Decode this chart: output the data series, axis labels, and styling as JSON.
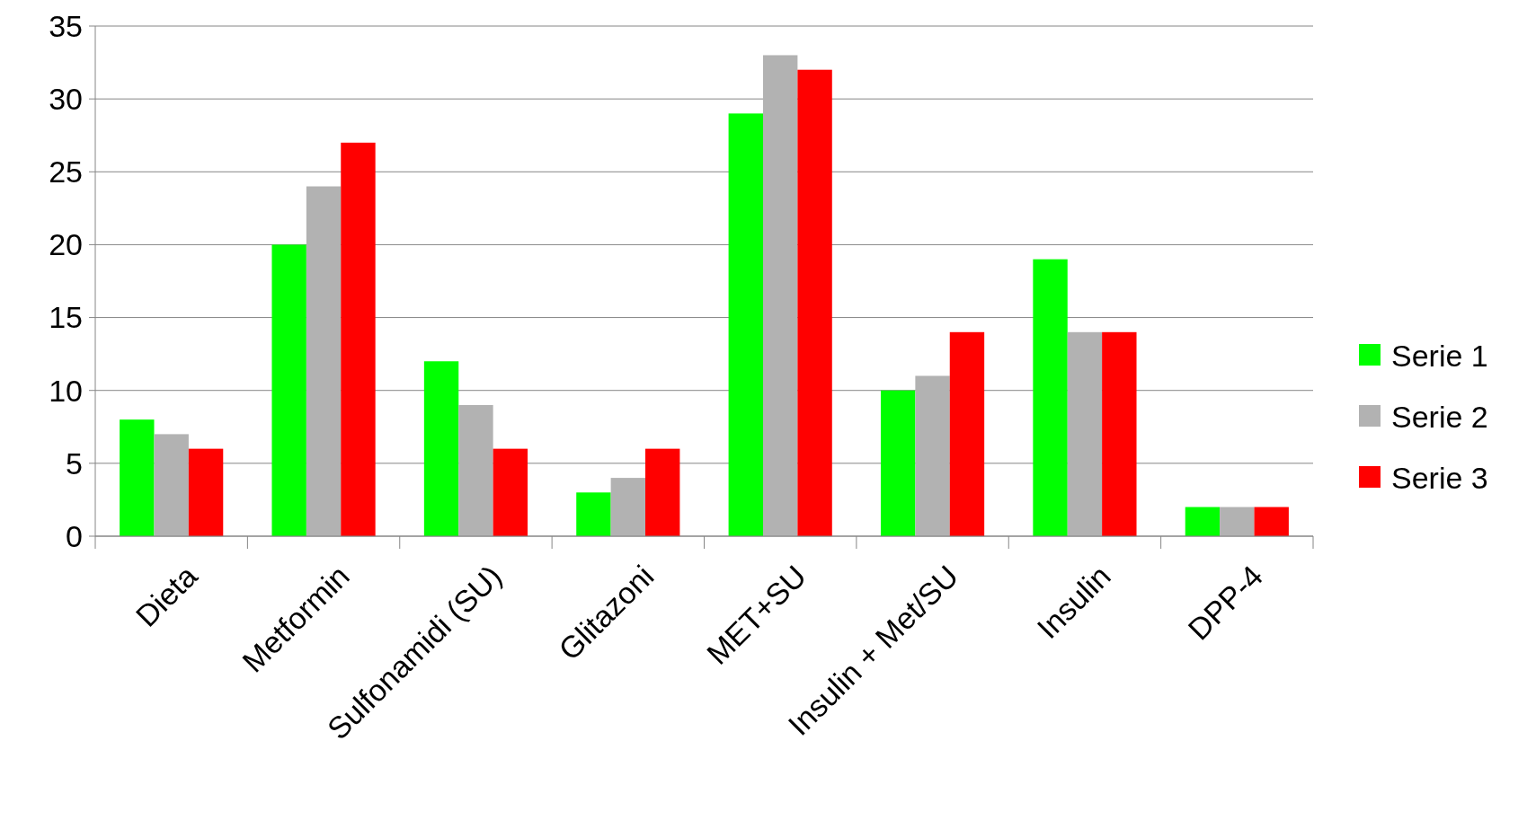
{
  "chart_data": {
    "type": "bar",
    "categories": [
      "Dieta",
      "Metformin",
      "Sulfonamidi (SU)",
      "Glitazoni",
      "MET+SU",
      "Insulin + Met/SU",
      "Insulin",
      "DPP-4"
    ],
    "series": [
      {
        "name": "Serie 1",
        "color": "#00ff00",
        "values": [
          8,
          20,
          12,
          3,
          29,
          10,
          19,
          2
        ]
      },
      {
        "name": "Serie 2",
        "color": "#b2b2b2",
        "values": [
          7,
          24,
          9,
          4,
          33,
          11,
          14,
          2
        ]
      },
      {
        "name": "Serie 3",
        "color": "#ff0000",
        "values": [
          6,
          27,
          6,
          6,
          32,
          14,
          14,
          2
        ]
      }
    ],
    "ylim": [
      0,
      35
    ],
    "yticks": [
      0,
      5,
      10,
      15,
      20,
      25,
      30,
      35
    ],
    "grid": "y",
    "legend": "right"
  }
}
